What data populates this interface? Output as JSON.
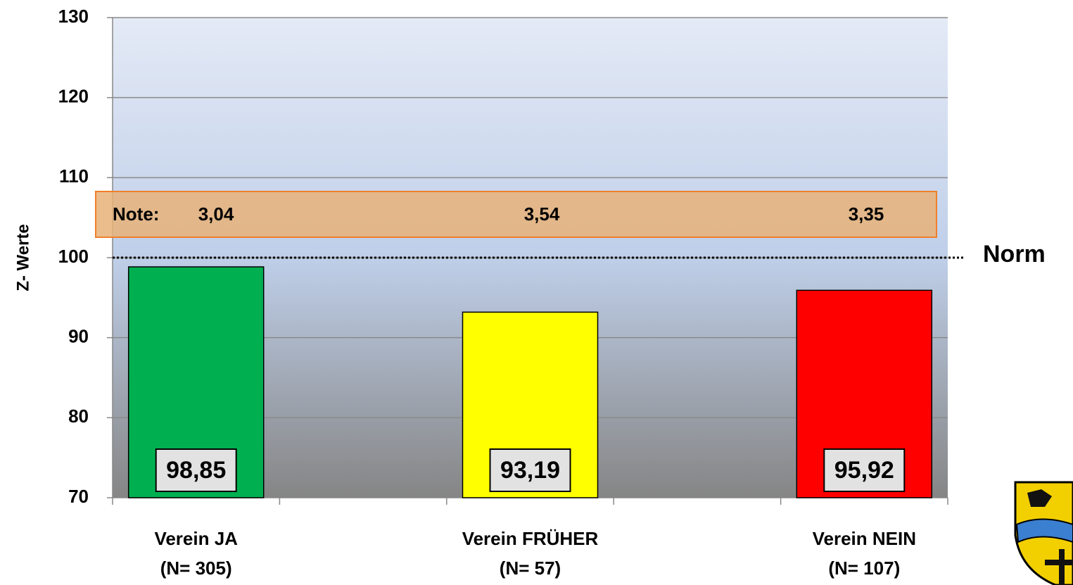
{
  "chart_data": {
    "type": "bar",
    "y_label": "Z- Werte",
    "categories": [
      [
        "Verein JA",
        "(N= 305)"
      ],
      [
        "Verein FRÜHER",
        "(N= 57)"
      ],
      [
        "Verein NEIN",
        "(N= 107)"
      ]
    ],
    "series": [
      {
        "colors": [
          "#00b050",
          "#ffff00",
          "#ff0000"
        ],
        "values": [
          98.85,
          93.19,
          95.92
        ],
        "value_labels": [
          "98,85",
          "93,19",
          "95,92"
        ]
      }
    ],
    "notes": {
      "label": "Note:",
      "values": [
        "3,04",
        "3,54",
        "3,35"
      ]
    },
    "norm": {
      "value": 100,
      "label": "Norm"
    },
    "ylim": [
      70,
      130
    ],
    "yticks": [
      70,
      80,
      90,
      100,
      110,
      120,
      130
    ],
    "grid": true
  }
}
